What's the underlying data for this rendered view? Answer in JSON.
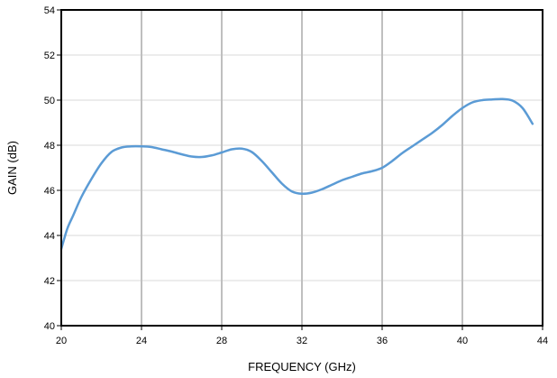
{
  "chart_data": {
    "type": "line",
    "title": "",
    "xlabel": "FREQUENCY (GHz)",
    "ylabel": "GAIN (dB)",
    "xlim": [
      20,
      44
    ],
    "ylim": [
      40,
      54
    ],
    "x_ticks": [
      20,
      24,
      28,
      32,
      36,
      40,
      44
    ],
    "y_ticks": [
      40,
      42,
      44,
      46,
      48,
      50,
      52,
      54
    ],
    "x_tick_labels": [
      "20",
      "24",
      "28",
      "32",
      "36",
      "40",
      "44"
    ],
    "y_tick_labels": [
      "40",
      "42",
      "44",
      "46",
      "48",
      "50",
      "52",
      "54"
    ],
    "grid": {
      "x": true,
      "y": true,
      "x_color": "#bfbfbf",
      "y_color": "#d9d9d9"
    },
    "legend": "none",
    "series": [
      {
        "color": "#5b9bd5",
        "points": [
          [
            20.0,
            43.4
          ],
          [
            20.3,
            44.3
          ],
          [
            20.6,
            44.9
          ],
          [
            21.0,
            45.7
          ],
          [
            21.5,
            46.5
          ],
          [
            22.0,
            47.2
          ],
          [
            22.5,
            47.7
          ],
          [
            23.0,
            47.9
          ],
          [
            23.5,
            47.95
          ],
          [
            24.0,
            47.95
          ],
          [
            24.5,
            47.92
          ],
          [
            25.0,
            47.82
          ],
          [
            25.5,
            47.72
          ],
          [
            26.0,
            47.6
          ],
          [
            26.5,
            47.5
          ],
          [
            27.0,
            47.48
          ],
          [
            27.5,
            47.55
          ],
          [
            28.0,
            47.68
          ],
          [
            28.5,
            47.82
          ],
          [
            29.0,
            47.85
          ],
          [
            29.5,
            47.7
          ],
          [
            30.0,
            47.3
          ],
          [
            30.5,
            46.8
          ],
          [
            31.0,
            46.3
          ],
          [
            31.5,
            45.95
          ],
          [
            32.0,
            45.85
          ],
          [
            32.5,
            45.9
          ],
          [
            33.0,
            46.05
          ],
          [
            33.5,
            46.25
          ],
          [
            34.0,
            46.45
          ],
          [
            34.5,
            46.6
          ],
          [
            35.0,
            46.75
          ],
          [
            35.5,
            46.85
          ],
          [
            36.0,
            47.0
          ],
          [
            36.5,
            47.3
          ],
          [
            37.0,
            47.65
          ],
          [
            37.5,
            47.95
          ],
          [
            38.0,
            48.25
          ],
          [
            38.5,
            48.55
          ],
          [
            39.0,
            48.9
          ],
          [
            39.5,
            49.3
          ],
          [
            40.0,
            49.65
          ],
          [
            40.5,
            49.9
          ],
          [
            41.0,
            50.0
          ],
          [
            41.5,
            50.03
          ],
          [
            42.0,
            50.05
          ],
          [
            42.5,
            49.98
          ],
          [
            43.0,
            49.65
          ],
          [
            43.5,
            48.95
          ]
        ]
      }
    ]
  }
}
